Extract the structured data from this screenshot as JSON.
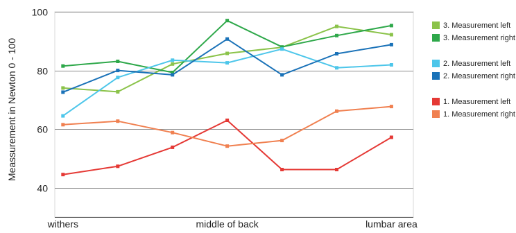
{
  "chart_data": {
    "type": "line",
    "ylabel": "Meassurement in Newton 0 - 100",
    "xlabel": "",
    "ylim": [
      30,
      100
    ],
    "yticks": [
      40,
      60,
      80,
      100
    ],
    "grid": "horizontal",
    "legend_position": "right",
    "x": [
      1,
      2,
      3,
      4,
      5,
      6,
      7
    ],
    "xlim": [
      0.85,
      7.4
    ],
    "x_tick_labels": [
      {
        "x": 1,
        "label": "withers"
      },
      {
        "x": 4,
        "label": "middle of back"
      },
      {
        "x": 7,
        "label": "lumbar area"
      }
    ],
    "series": [
      {
        "name": "3. Measurement left",
        "color": "#8bc34a",
        "values": [
          74.0,
          72.7,
          82.2,
          85.8,
          87.9,
          95.0,
          92.2
        ]
      },
      {
        "name": "3. Measurement right",
        "color": "#2ea84a",
        "values": [
          81.5,
          83.1,
          79.3,
          97.0,
          88.0,
          91.9,
          95.3
        ]
      },
      {
        "name": "2. Measurement left",
        "color": "#4dc6ea",
        "values": [
          64.5,
          77.6,
          83.5,
          82.6,
          87.3,
          80.9,
          81.9
        ]
      },
      {
        "name": "2. Measurement right",
        "color": "#1a72b8",
        "values": [
          72.6,
          80.0,
          78.5,
          90.7,
          78.5,
          85.7,
          88.8
        ]
      },
      {
        "name": "1. Measurement left",
        "color": "#e53935",
        "values": [
          44.5,
          47.3,
          53.8,
          63.0,
          46.2,
          46.2,
          57.2
        ]
      },
      {
        "name": "1. Measurement right",
        "color": "#f08050",
        "values": [
          61.5,
          62.7,
          58.8,
          54.2,
          56.1,
          66.1,
          67.7
        ]
      }
    ]
  }
}
